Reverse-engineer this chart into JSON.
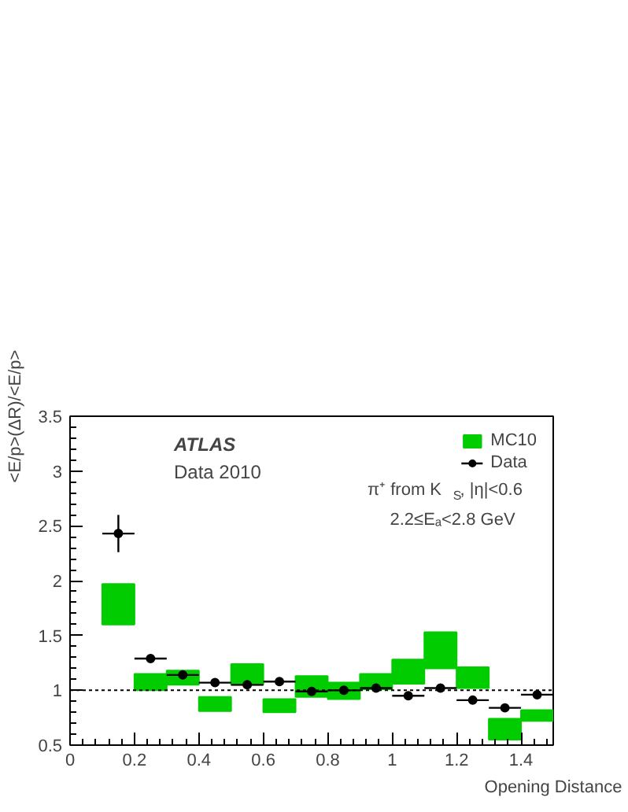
{
  "chart_data": {
    "type": "scatter",
    "xlabel": "Opening Distance",
    "ylabel": "<E/p>(ΔR)/<E/p>",
    "x": [
      0.15,
      0.25,
      0.35,
      0.45,
      0.55,
      0.65,
      0.75,
      0.85,
      0.95,
      1.05,
      1.15,
      1.25,
      1.35,
      1.45
    ],
    "series": [
      {
        "name": "Data",
        "color": "#000000",
        "marker": "circle",
        "values": [
          2.43,
          1.29,
          1.14,
          1.07,
          1.05,
          1.08,
          0.99,
          1.0,
          1.02,
          0.95,
          1.02,
          0.91,
          0.84,
          0.96
        ],
        "errors": [
          0.17,
          null,
          null,
          null,
          null,
          null,
          null,
          null,
          null,
          null,
          null,
          null,
          null,
          null
        ],
        "xerrors": [
          0.05,
          0.05,
          0.05,
          0.05,
          0.05,
          0.05,
          0.05,
          0.05,
          0.05,
          0.05,
          0.05,
          0.05,
          0.05,
          0.05
        ]
      },
      {
        "name": "MC10",
        "type": "bar",
        "color": "#00cc00",
        "base": [
          1.6,
          1.0,
          1.05,
          0.81,
          1.05,
          0.8,
          0.94,
          0.92,
          1.01,
          1.06,
          1.2,
          1.02,
          0.55,
          0.72
        ],
        "values": [
          0.37,
          0.15,
          0.13,
          0.13,
          0.19,
          0.12,
          0.19,
          0.15,
          0.14,
          0.22,
          0.33,
          0.19,
          0.19,
          0.1
        ]
      }
    ],
    "xlim": [
      0,
      1.5
    ],
    "ylim": [
      0.5,
      3.5
    ],
    "xticks": [
      0,
      0.2,
      0.4,
      0.6,
      0.8,
      1,
      1.2,
      1.4
    ],
    "yticks": [
      0.5,
      1,
      1.5,
      2,
      2.5,
      3,
      3.5
    ],
    "ref_lines": [
      {
        "axis": "y",
        "value": 1,
        "color": "#000000",
        "line_style": "dotted"
      }
    ],
    "annotations": [
      "ATLAS",
      "Data 2010",
      "π⁺ from K$_{S}$, |η|<0.6",
      "2.2≤Eₐ<2.8 GeV"
    ],
    "legend": "top right",
    "grid": false
  }
}
